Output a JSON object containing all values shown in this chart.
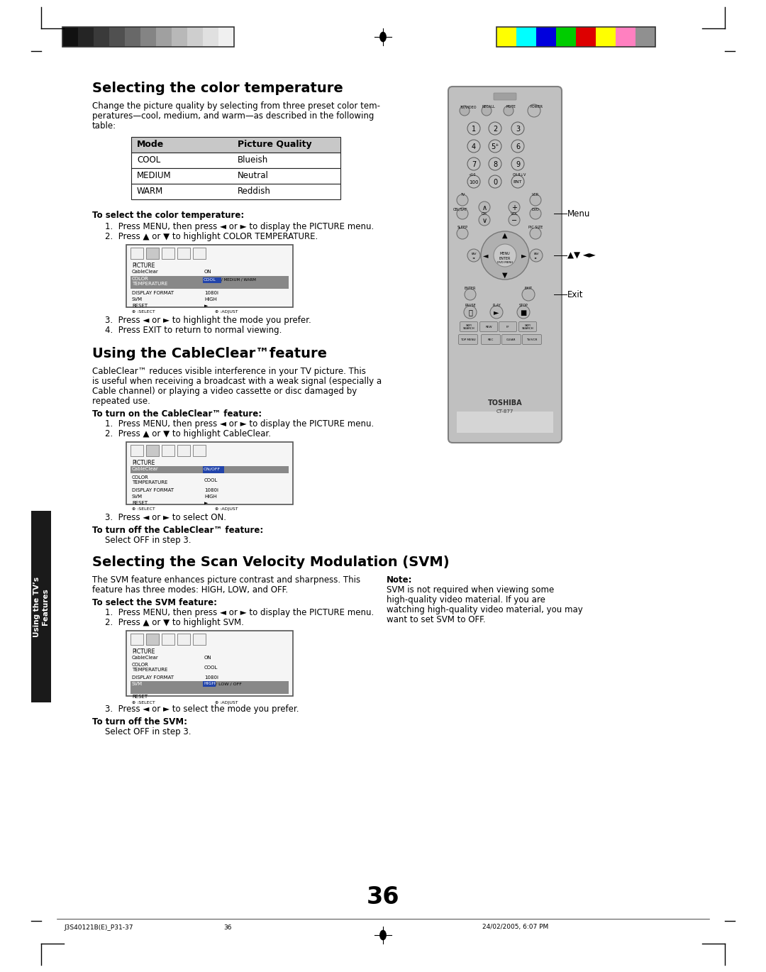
{
  "page_bg": "#ffffff",
  "page_number": "36",
  "footer_left": "J3S40121B(E)_P31-37",
  "footer_center": "36",
  "footer_right": "24/02/2005, 6:07 PM",
  "section1_title": "Selecting the color temperature",
  "section1_body1": "Change the picture quality by selecting from three preset color tem-",
  "section1_body2": "peratures—cool, medium, and warm—as described in the following",
  "section1_body3": "table:",
  "table_header": [
    "Mode",
    "Picture Quality"
  ],
  "table_rows": [
    [
      "COOL",
      "Blueish"
    ],
    [
      "MEDIUM",
      "Neutral"
    ],
    [
      "WARM",
      "Reddish"
    ]
  ],
  "section1_sub_title": "To select the color temperature:",
  "section1_step1": "Press MENU, then press ◄ or ► to display the PICTURE menu.",
  "section1_step2": "Press ▲ or ▼ to highlight COLOR TEMPERATURE.",
  "section1_step3": "Press ◄ or ► to highlight the mode you prefer.",
  "section1_step4": "Press EXIT to return to normal viewing.",
  "section2_title": "Using the CableClear™​feature",
  "section2_body1": "CableClear™ reduces visible interference in your TV picture. This",
  "section2_body2": "is useful when receiving a broadcast with a weak signal (especially a",
  "section2_body3": "Cable channel) or playing a video cassette or disc damaged by",
  "section2_body4": "repeated use.",
  "section2_sub_title": "To turn on the CableClear™ feature:",
  "section2_step1": "Press MENU, then press ◄ or ► to display the PICTURE menu.",
  "section2_step2": "Press ▲ or ▼ to highlight CableClear.",
  "section2_step3": "Press ◄ or ► to select ON.",
  "section2_off": "To turn off the CableClear™ feature:",
  "section2_off_body": "Select OFF in step 3.",
  "section3_title": "Selecting the Scan Velocity Modulation (SVM)",
  "section3_body1": "The SVM feature enhances picture contrast and sharpness. This",
  "section3_body2": "feature has three modes: HIGH, LOW, and OFF.",
  "section3_sub_title": "To select the SVM feature:",
  "section3_step1": "Press MENU, then press ◄ or ► to display the PICTURE menu.",
  "section3_step2": "Press ▲ or ▼ to highlight SVM.",
  "section3_step3": "Press ◄ or ► to select the mode you prefer.",
  "section3_off": "To turn off the SVM:",
  "section3_off_body": "Select OFF in step 3.",
  "note_title": "Note:",
  "note_body1": "SVM is not required when viewing some",
  "note_body2": "high-quality video material. If you are",
  "note_body3": "watching high-quality video material, you may",
  "note_body4": "want to set SVM to OFF.",
  "sidebar_text": "Using the TV’s\nFeatures",
  "gray_colors": [
    "#111111",
    "#252525",
    "#3a3a3a",
    "#505050",
    "#686868",
    "#848484",
    "#a0a0a0",
    "#b8b8b8",
    "#cecece",
    "#e0e0e0",
    "#f0f0f0"
  ],
  "color_bar_colors": [
    "#ffff00",
    "#00ffff",
    "#0000dd",
    "#00cc00",
    "#dd0000",
    "#ffff00",
    "#ff80c0",
    "#909090"
  ]
}
